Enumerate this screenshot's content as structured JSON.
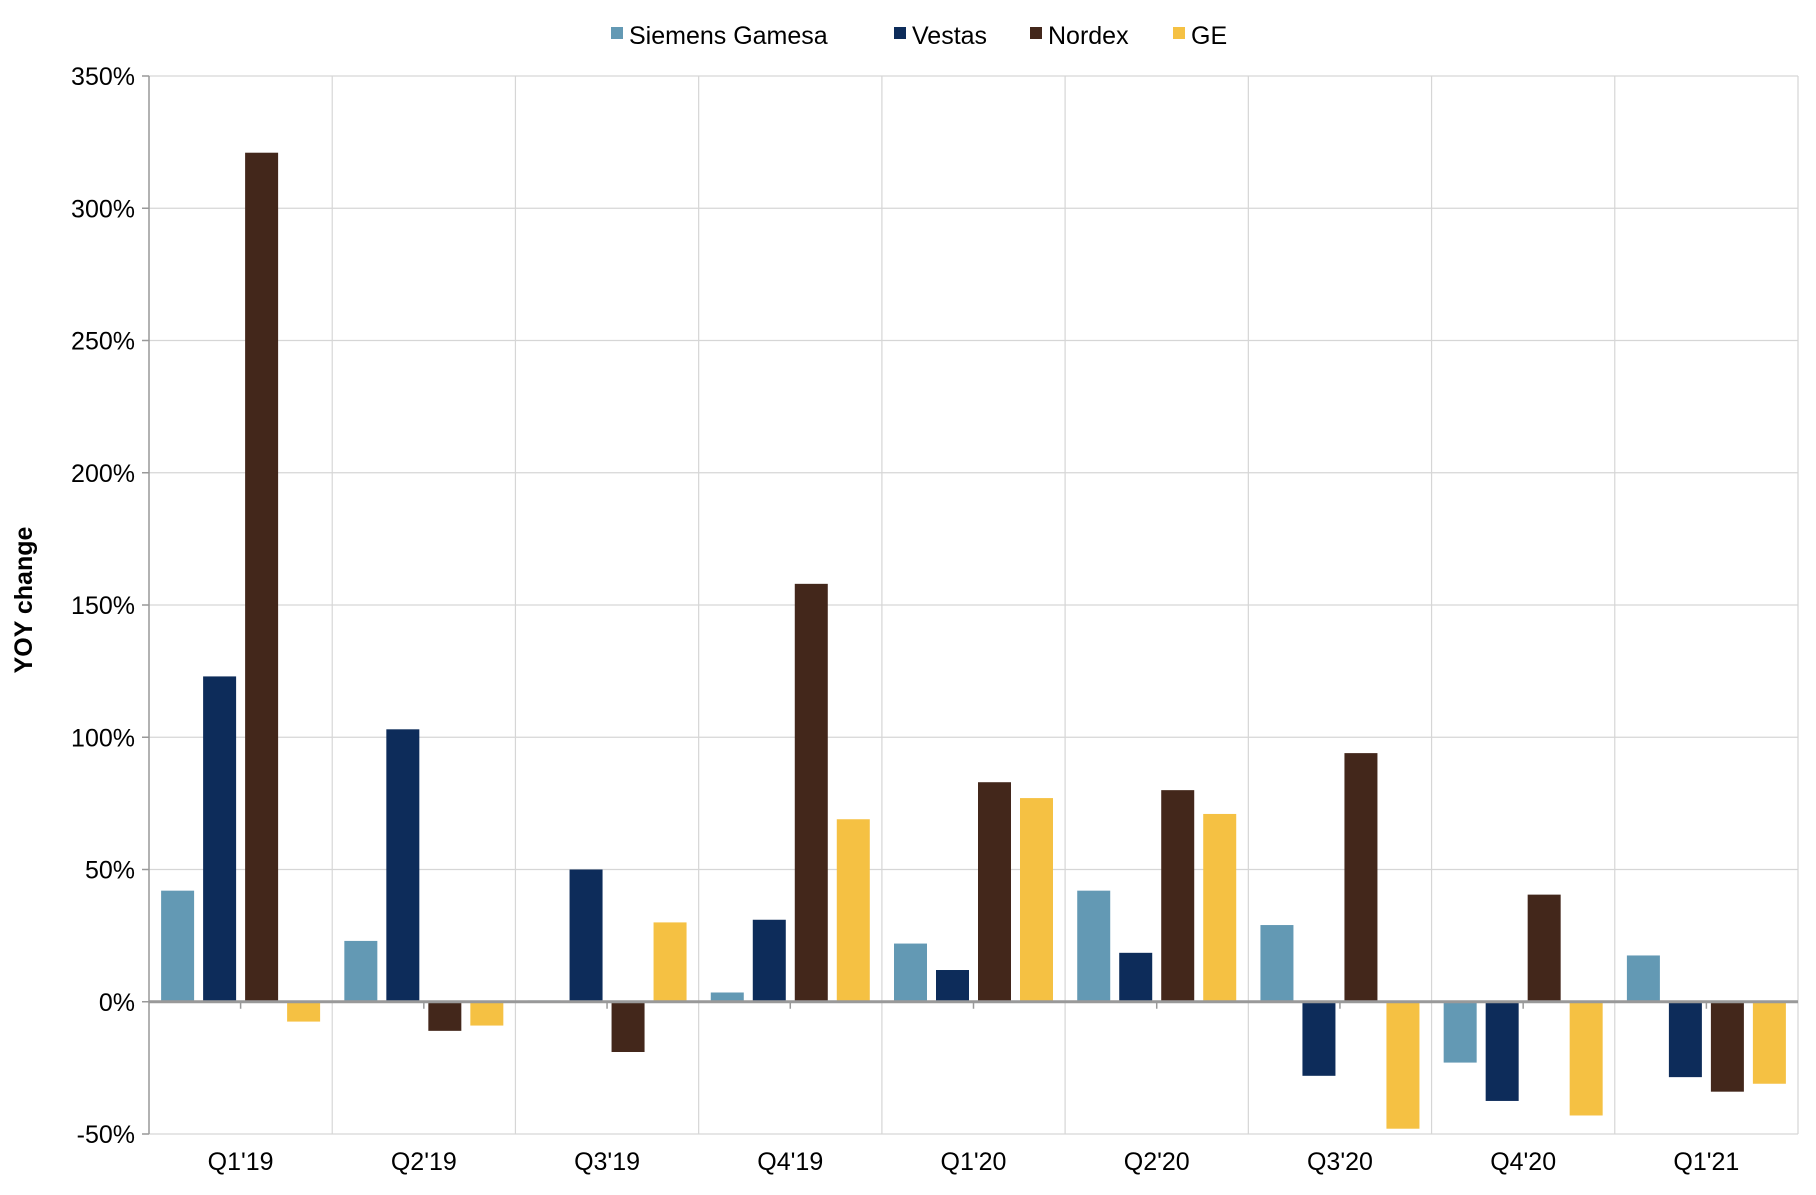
{
  "chart_data": {
    "type": "bar",
    "title": "",
    "xlabel": "",
    "ylabel": "YOY change",
    "ylim": [
      -50,
      350
    ],
    "yticks": [
      -50,
      0,
      50,
      100,
      150,
      200,
      250,
      300,
      350
    ],
    "ytick_labels": [
      "-50%",
      "0%",
      "50%",
      "100%",
      "150%",
      "200%",
      "250%",
      "300%",
      "350%"
    ],
    "grid": true,
    "legend_position": "top-center",
    "categories": [
      "Q1'19",
      "Q2'19",
      "Q3'19",
      "Q4'19",
      "Q1'20",
      "Q2'20",
      "Q3'20",
      "Q4'20",
      "Q1'21"
    ],
    "series": [
      {
        "name": "Siemens Gamesa",
        "color": "#6399b4",
        "values": [
          42,
          23,
          0.5,
          3.5,
          22,
          42,
          29,
          -23,
          17.5
        ]
      },
      {
        "name": "Vestas",
        "color": "#0d2c5a",
        "values": [
          123,
          103,
          50,
          31,
          12,
          18.5,
          -28,
          -37.5,
          -28.5
        ]
      },
      {
        "name": "Nordex",
        "color": "#43271b",
        "values": [
          321,
          -11,
          -19,
          158,
          83,
          80,
          94,
          40.5,
          -34
        ]
      },
      {
        "name": "GE",
        "color": "#f5c143",
        "values": [
          -7.5,
          -9,
          30,
          69,
          77,
          71,
          -48,
          -43,
          -31
        ]
      }
    ]
  }
}
